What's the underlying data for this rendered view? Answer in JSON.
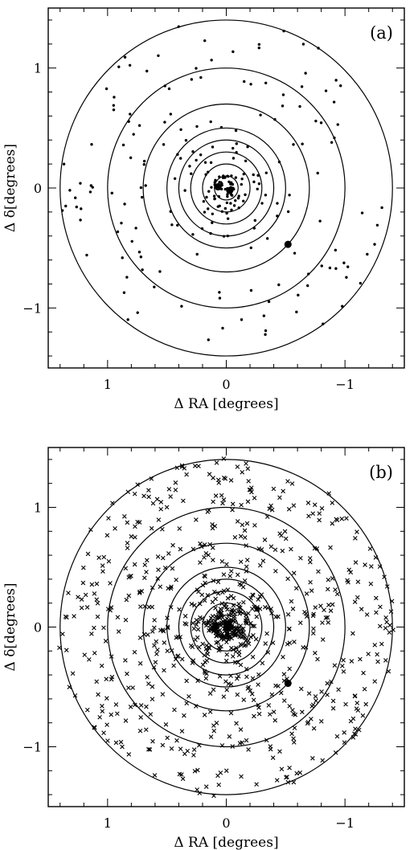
{
  "chart_data": [
    {
      "type": "scatter",
      "panel_label": "(a)",
      "xlabel": "Δ RA [degrees]",
      "ylabel": "Δ δ[degrees]",
      "xlim": [
        1.5,
        -1.5
      ],
      "ylim": [
        -1.5,
        1.5
      ],
      "x_ticks": [
        {
          "v": 1,
          "label": "1"
        },
        {
          "v": 0,
          "label": "0"
        },
        {
          "v": -1,
          "label": "−1"
        }
      ],
      "y_ticks": [
        {
          "v": 1,
          "label": "1"
        },
        {
          "v": 0,
          "label": "0"
        },
        {
          "v": -1,
          "label": "−1"
        }
      ],
      "circle_radii_deg": [
        0.1,
        0.2,
        0.3,
        0.4,
        0.5,
        0.7,
        1.0,
        1.4
      ],
      "marker": "dot",
      "random_seed": 11,
      "n_points": 240,
      "big_points": [
        [
          0.07,
          0.01
        ],
        [
          -0.03,
          -0.02
        ],
        [
          -0.52,
          -0.47
        ]
      ]
    },
    {
      "type": "scatter",
      "panel_label": "(b)",
      "xlabel": "Δ RA [degrees]",
      "ylabel": "Δ δ[degrees]",
      "xlim": [
        1.5,
        -1.5
      ],
      "ylim": [
        -1.5,
        1.5
      ],
      "x_ticks": [
        {
          "v": 1,
          "label": "1"
        },
        {
          "v": 0,
          "label": "0"
        },
        {
          "v": -1,
          "label": "−1"
        }
      ],
      "y_ticks": [
        {
          "v": 1,
          "label": "1"
        },
        {
          "v": 0,
          "label": "0"
        },
        {
          "v": -1,
          "label": "−1"
        }
      ],
      "circle_radii_deg": [
        0.1,
        0.2,
        0.3,
        0.4,
        0.5,
        0.7,
        1.0,
        1.4
      ],
      "marker": "cross",
      "random_seed": 29,
      "n_points": 850,
      "big_points": [
        [
          0.09,
          0.01
        ],
        [
          -0.03,
          0.0
        ],
        [
          -0.52,
          -0.47
        ]
      ]
    }
  ]
}
